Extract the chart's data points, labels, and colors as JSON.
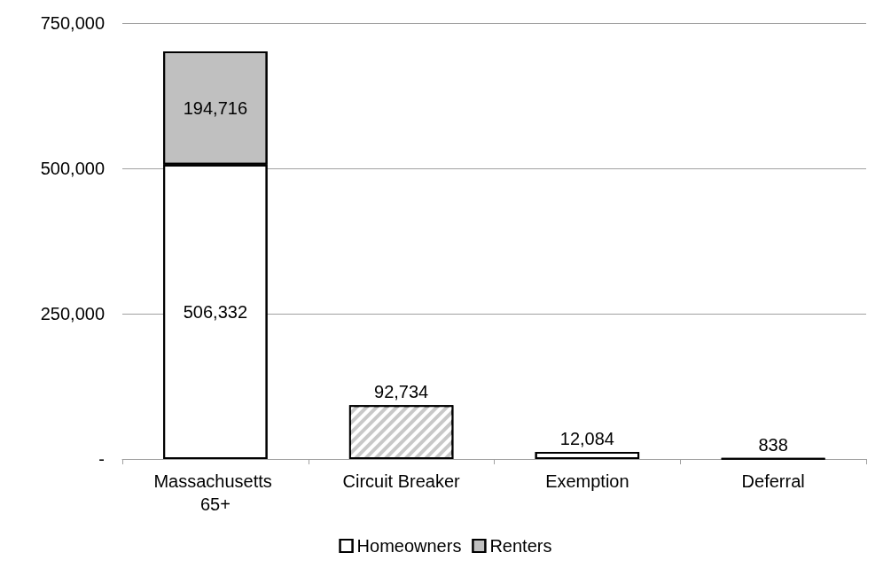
{
  "chart_data": {
    "type": "bar",
    "stacked": true,
    "categories": [
      "Massachusetts 65+",
      "Circuit Breaker",
      "Exemption",
      "Deferral"
    ],
    "series": [
      {
        "name": "Homeowners",
        "color": "#ffffff",
        "values": [
          506332,
          null,
          12084,
          838
        ],
        "value_labels": [
          "506,332",
          null,
          "12,084",
          "838"
        ]
      },
      {
        "name": "Renters",
        "color": "#c0c0c0",
        "values": [
          194716,
          null,
          null,
          null
        ],
        "value_labels": [
          "194,716",
          null,
          null,
          null
        ]
      },
      {
        "color": "#c8c8c8",
        "values": [
          null,
          92734,
          null,
          null
        ],
        "value_labels": [
          null,
          "92,734",
          null,
          null
        ]
      }
    ],
    "ylim": [
      0,
      750000
    ],
    "yticks": [
      {
        "value": 0,
        "label": "-"
      },
      {
        "value": 250000,
        "label": "250,000"
      },
      {
        "value": 500000,
        "label": "500,000"
      },
      {
        "value": 750000,
        "label": "750,000"
      }
    ],
    "grid": "y",
    "legend": "bottom"
  }
}
